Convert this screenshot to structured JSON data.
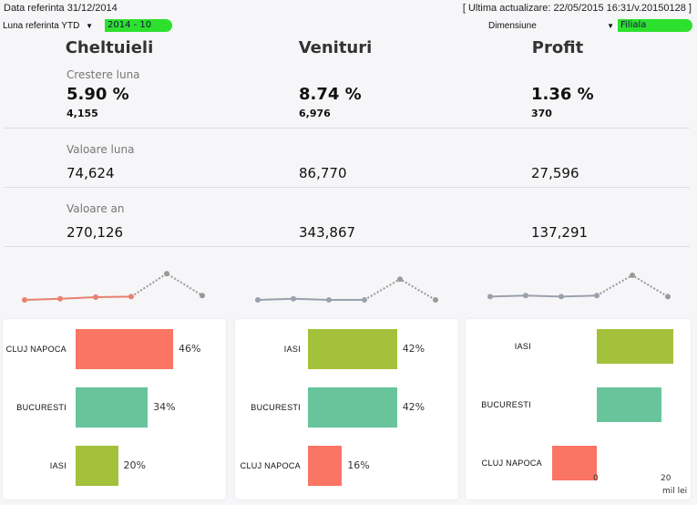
{
  "header": {
    "date_ref": "Data referinta 31/12/2014",
    "last_update": "[ Ultima actualizare: 22/05/2015 16:31/v.20150128 ]",
    "month_label": "Luna referinta YTD",
    "month_value": "2014 - 10",
    "dimension_label": "Dimensiune",
    "dimension_value": "Filiala"
  },
  "colors": {
    "expense": "#fa7563",
    "green": "#a3c13a",
    "teal": "#68c49b",
    "line_gray": "#9aa0ac"
  },
  "columns": [
    {
      "title": "Cheltuieli",
      "growth_label": "Crestere luna",
      "growth_pct": "5.90 %",
      "growth_abs": "4,155",
      "month_label": "Valoare luna",
      "month_value": "74,624",
      "year_label": "Valoare an",
      "year_value": "270,126"
    },
    {
      "title": "Venituri",
      "growth_pct": "8.74 %",
      "growth_abs": "6,976",
      "month_value": "86,770",
      "year_value": "343,867"
    },
    {
      "title": "Profit",
      "growth_pct": "1.36 %",
      "growth_abs": "370",
      "month_value": "27,596",
      "year_value": "137,291"
    }
  ],
  "sparklines": [
    {
      "color": "#e8806e",
      "values": [
        1,
        1.2,
        1.5,
        1.6,
        5.8,
        1.8
      ]
    },
    {
      "color": "#9aa0ac",
      "values": [
        1,
        1.2,
        1,
        1,
        4.8,
        1
      ]
    },
    {
      "color": "#9aa0ac",
      "values": [
        1.6,
        1.8,
        1.6,
        1.8,
        5.5,
        1.6
      ]
    }
  ],
  "bars": [
    {
      "items": [
        {
          "label": "CLUJ NAPOCA",
          "pct": "46%",
          "value": 46,
          "color": "#fa7563"
        },
        {
          "label": "BUCURESTI",
          "pct": "34%",
          "value": 34,
          "color": "#68c49b"
        },
        {
          "label": "IASI",
          "pct": "20%",
          "value": 20,
          "color": "#a3c13a"
        }
      ]
    },
    {
      "items": [
        {
          "label": "IASI",
          "pct": "42%",
          "value": 42,
          "color": "#a3c13a"
        },
        {
          "label": "BUCURESTI",
          "pct": "42%",
          "value": 42,
          "color": "#68c49b"
        },
        {
          "label": "CLUJ NAPOCA",
          "pct": "16%",
          "value": 16,
          "color": "#fa7563"
        }
      ]
    },
    {
      "items": [
        {
          "label": "IASI",
          "value": 22,
          "color": "#a3c13a"
        },
        {
          "label": "BUCURESTI",
          "value": 18.7,
          "color": "#68c49b"
        },
        {
          "label": "CLUJ NAPOCA",
          "value": -12.9,
          "color": "#fa7563"
        }
      ],
      "axis_ticks": [
        "0",
        "20"
      ],
      "unit": "mil lei"
    }
  ]
}
